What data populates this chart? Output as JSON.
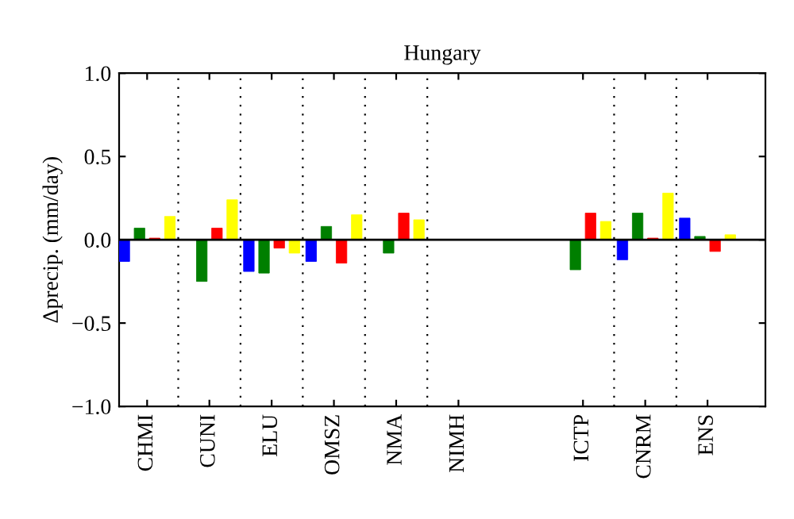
{
  "chart_data": {
    "type": "bar",
    "title": "Hungary",
    "ylabel": "Δprecip. (mm/day)",
    "categories": [
      "CHMI",
      "CUNI",
      "ELU",
      "OMSZ",
      "NMA",
      "NIMH",
      null,
      "ICTP",
      "CNRM",
      "ENS"
    ],
    "series": [
      {
        "color": "#0000ff",
        "values": [
          -0.13,
          null,
          -0.19,
          -0.13,
          null,
          null,
          null,
          null,
          -0.12,
          0.13
        ]
      },
      {
        "color": "#007f00",
        "values": [
          0.07,
          -0.25,
          -0.2,
          0.08,
          -0.08,
          null,
          null,
          -0.18,
          0.16,
          0.02
        ]
      },
      {
        "color": "#ff0000",
        "values": [
          0.01,
          0.07,
          -0.05,
          -0.14,
          0.16,
          null,
          null,
          0.16,
          0.01,
          -0.07
        ]
      },
      {
        "color": "#ffff00",
        "values": [
          0.14,
          0.24,
          -0.08,
          0.15,
          0.12,
          null,
          null,
          0.11,
          0.28,
          0.03
        ]
      }
    ],
    "ylim": [
      -1.0,
      1.0
    ],
    "yticks": [
      {
        "value": -1.0,
        "label": "−1.0"
      },
      {
        "value": -0.5,
        "label": "−0.5"
      },
      {
        "value": 0.0,
        "label": "0.0"
      },
      {
        "value": 0.5,
        "label": "0.5"
      },
      {
        "value": 1.0,
        "label": "1.0"
      }
    ],
    "ref_lines": [
      {
        "axis": "y",
        "value": 0,
        "color": "#000000"
      }
    ],
    "grid": false,
    "legend": false
  }
}
